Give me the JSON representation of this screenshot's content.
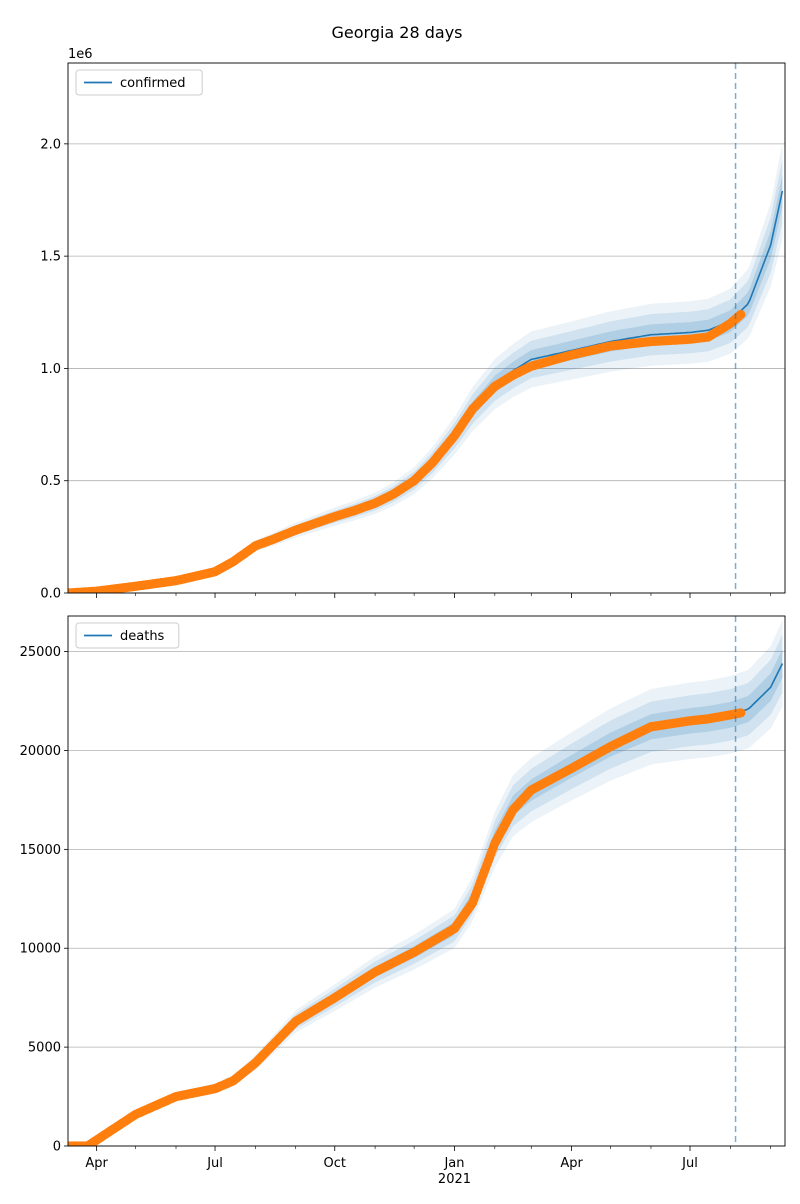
{
  "figure_title": "Georgia 28 days",
  "chart_data": [
    {
      "type": "line",
      "series": [
        {
          "name": "confirmed",
          "x": [
            "2020-03-10",
            "2020-04-01",
            "2020-05-01",
            "2020-06-01",
            "2020-07-01",
            "2020-07-15",
            "2020-08-01",
            "2020-08-15",
            "2020-09-01",
            "2020-10-01",
            "2020-10-15",
            "2020-11-01",
            "2020-11-15",
            "2020-12-01",
            "2020-12-15",
            "2021-01-01",
            "2021-01-15",
            "2021-02-01",
            "2021-02-15",
            "2021-03-01",
            "2021-04-01",
            "2021-05-01",
            "2021-06-01",
            "2021-07-01",
            "2021-07-15",
            "2021-08-01",
            "2021-08-15",
            "2021-09-01",
            "2021-09-10"
          ],
          "values": [
            0,
            8000,
            30000,
            55000,
            95000,
            140000,
            210000,
            240000,
            280000,
            340000,
            365000,
            400000,
            440000,
            500000,
            580000,
            700000,
            820000,
            930000,
            990000,
            1040000,
            1080000,
            1120000,
            1150000,
            1160000,
            1170000,
            1210000,
            1290000,
            1550000,
            1790000
          ]
        }
      ],
      "observed": {
        "x": [
          "2020-03-10",
          "2020-04-01",
          "2020-05-01",
          "2020-06-01",
          "2020-07-01",
          "2020-07-15",
          "2020-08-01",
          "2020-08-15",
          "2020-09-01",
          "2020-10-01",
          "2020-10-15",
          "2020-11-01",
          "2020-11-15",
          "2020-12-01",
          "2020-12-15",
          "2021-01-01",
          "2021-01-15",
          "2021-02-01",
          "2021-02-15",
          "2021-03-01",
          "2021-04-01",
          "2021-05-01",
          "2021-06-01",
          "2021-07-01",
          "2021-07-15",
          "2021-08-01",
          "2021-08-09"
        ],
        "values": [
          0,
          8000,
          30000,
          55000,
          95000,
          140000,
          210000,
          240000,
          280000,
          340000,
          365000,
          400000,
          440000,
          500000,
          580000,
          700000,
          820000,
          920000,
          970000,
          1010000,
          1060000,
          1100000,
          1120000,
          1130000,
          1140000,
          1200000,
          1240000
        ]
      },
      "bands": [
        {
          "lower_ratio": 0.96,
          "upper_ratio": 1.04,
          "opacity": 0.18
        },
        {
          "lower_ratio": 0.92,
          "upper_ratio": 1.08,
          "opacity": 0.13
        },
        {
          "lower_ratio": 0.88,
          "upper_ratio": 1.12,
          "opacity": 0.09
        }
      ],
      "forecast_start": "2021-08-05",
      "xlim": [
        "2020-03-10",
        "2021-09-12"
      ],
      "ylim": [
        0,
        2360000
      ],
      "y_ticks": [
        0,
        500000,
        1000000,
        1500000,
        2000000
      ],
      "y_tick_labels": [
        "0.0",
        "0.5",
        "1.0",
        "1.5",
        "2.0"
      ],
      "y_offset_label": "1e6",
      "legend": "top-left",
      "grid": true,
      "show_x_labels": false
    },
    {
      "type": "line",
      "series": [
        {
          "name": "deaths",
          "x": [
            "2020-03-10",
            "2020-03-25",
            "2020-04-01",
            "2020-05-01",
            "2020-06-01",
            "2020-07-01",
            "2020-07-15",
            "2020-08-01",
            "2020-09-01",
            "2020-10-01",
            "2020-11-01",
            "2020-12-01",
            "2021-01-01",
            "2021-01-15",
            "2021-02-01",
            "2021-02-15",
            "2021-03-01",
            "2021-04-01",
            "2021-05-01",
            "2021-06-01",
            "2021-07-01",
            "2021-07-15",
            "2021-08-01",
            "2021-08-15",
            "2021-09-01",
            "2021-09-10"
          ],
          "values": [
            0,
            0,
            300,
            1600,
            2500,
            2900,
            3300,
            4200,
            6300,
            7500,
            8800,
            9800,
            11000,
            12500,
            15500,
            17200,
            18000,
            19200,
            20300,
            21200,
            21500,
            21600,
            21800,
            22100,
            23200,
            24400
          ]
        }
      ],
      "observed": {
        "x": [
          "2020-03-10",
          "2020-03-25",
          "2020-04-01",
          "2020-05-01",
          "2020-06-01",
          "2020-07-01",
          "2020-07-15",
          "2020-08-01",
          "2020-09-01",
          "2020-10-01",
          "2020-11-01",
          "2020-12-01",
          "2021-01-01",
          "2021-01-15",
          "2021-02-01",
          "2021-02-15",
          "2021-03-01",
          "2021-04-01",
          "2021-05-01",
          "2021-06-01",
          "2021-07-01",
          "2021-07-15",
          "2021-08-01",
          "2021-08-09"
        ],
        "values": [
          0,
          0,
          300,
          1600,
          2500,
          2900,
          3300,
          4200,
          6300,
          7500,
          8800,
          9800,
          11000,
          12300,
          15300,
          17000,
          18000,
          19100,
          20200,
          21200,
          21500,
          21600,
          21800,
          21900
        ]
      },
      "bands": [
        {
          "lower_ratio": 0.97,
          "upper_ratio": 1.03,
          "opacity": 0.18
        },
        {
          "lower_ratio": 0.94,
          "upper_ratio": 1.06,
          "opacity": 0.13
        },
        {
          "lower_ratio": 0.91,
          "upper_ratio": 1.09,
          "opacity": 0.09
        }
      ],
      "forecast_start": "2021-08-05",
      "xlim": [
        "2020-03-10",
        "2021-09-12"
      ],
      "ylim": [
        0,
        26800
      ],
      "y_ticks": [
        0,
        5000,
        10000,
        15000,
        20000,
        25000
      ],
      "y_tick_labels": [
        "0",
        "5000",
        "10000",
        "15000",
        "20000",
        "25000"
      ],
      "y_offset_label": "",
      "legend": "top-left",
      "grid": true,
      "show_x_labels": true
    }
  ],
  "x_axis": {
    "major_ticks": [
      "2020-04-01",
      "2020-07-01",
      "2020-10-01",
      "2021-01-01",
      "2021-04-01",
      "2021-07-01"
    ],
    "major_labels": [
      "Apr",
      "Jul",
      "Oct",
      "Jan",
      "Apr",
      "Jul"
    ],
    "year_label": "2021",
    "minor_ticks": [
      "2020-05-01",
      "2020-06-01",
      "2020-08-01",
      "2020-09-01",
      "2020-11-01",
      "2020-12-01",
      "2021-02-01",
      "2021-03-01",
      "2021-05-01",
      "2021-06-01",
      "2021-08-01",
      "2021-09-01"
    ]
  },
  "colors": {
    "line": "#1f77b4",
    "observed": "#ff7f0e",
    "band": "#1f77b4",
    "grid": "#b0b0b0",
    "forecast_line": "#1f77b4"
  }
}
